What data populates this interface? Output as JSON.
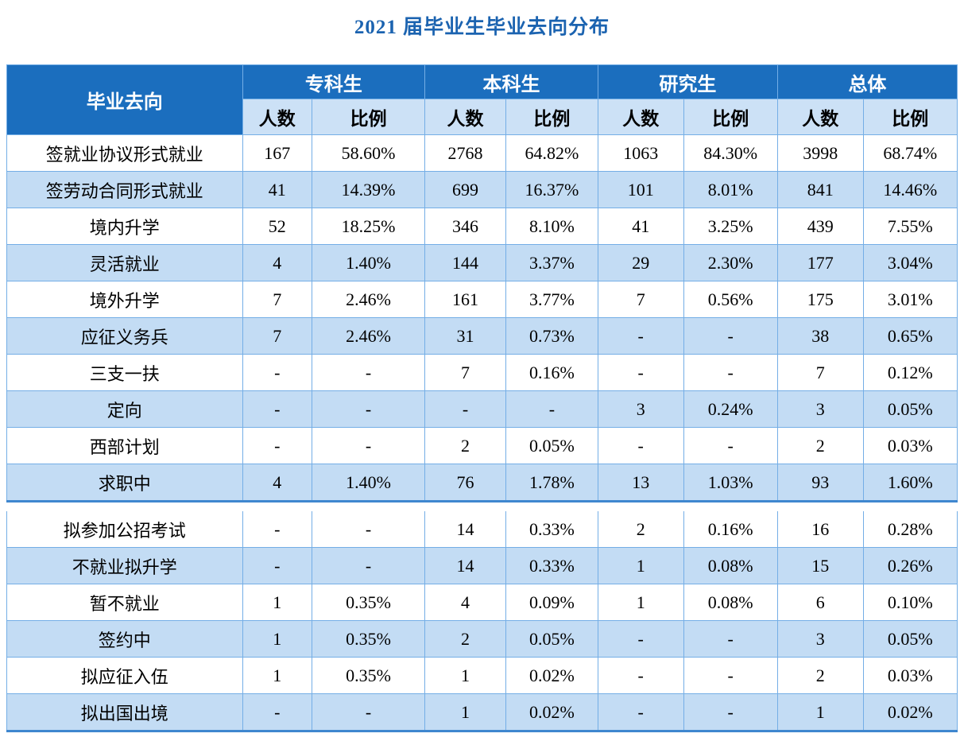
{
  "title": "2021 届毕业生毕业去向分布",
  "colors": {
    "title_text": "#1B63B0",
    "header_fill": "#1B6EBE",
    "header_text": "#FFFFFF",
    "subheader_fill": "#CCE1F6",
    "stripe_fill": "#C3DCF4",
    "cell_border": "#74AEE6",
    "section_rule": "#3F87CF",
    "body_text": "#000000"
  },
  "table": {
    "corner_header": "毕业去向",
    "groups": [
      {
        "label": "专科生"
      },
      {
        "label": "本科生"
      },
      {
        "label": "研究生"
      },
      {
        "label": "总体"
      }
    ],
    "subheaders": [
      "人数",
      "比例"
    ],
    "page_break_after_row": 10,
    "rows": [
      {
        "label": "签就业协议形式就业",
        "values": [
          "167",
          "58.60%",
          "2768",
          "64.82%",
          "1063",
          "84.30%",
          "3998",
          "68.74%"
        ]
      },
      {
        "label": "签劳动合同形式就业",
        "values": [
          "41",
          "14.39%",
          "699",
          "16.37%",
          "101",
          "8.01%",
          "841",
          "14.46%"
        ]
      },
      {
        "label": "境内升学",
        "values": [
          "52",
          "18.25%",
          "346",
          "8.10%",
          "41",
          "3.25%",
          "439",
          "7.55%"
        ]
      },
      {
        "label": "灵活就业",
        "values": [
          "4",
          "1.40%",
          "144",
          "3.37%",
          "29",
          "2.30%",
          "177",
          "3.04%"
        ]
      },
      {
        "label": "境外升学",
        "values": [
          "7",
          "2.46%",
          "161",
          "3.77%",
          "7",
          "0.56%",
          "175",
          "3.01%"
        ]
      },
      {
        "label": "应征义务兵",
        "values": [
          "7",
          "2.46%",
          "31",
          "0.73%",
          "-",
          "-",
          "38",
          "0.65%"
        ]
      },
      {
        "label": "三支一扶",
        "values": [
          "-",
          "-",
          "7",
          "0.16%",
          "-",
          "-",
          "7",
          "0.12%"
        ]
      },
      {
        "label": "定向",
        "values": [
          "-",
          "-",
          "-",
          "-",
          "3",
          "0.24%",
          "3",
          "0.05%"
        ]
      },
      {
        "label": "西部计划",
        "values": [
          "-",
          "-",
          "2",
          "0.05%",
          "-",
          "-",
          "2",
          "0.03%"
        ]
      },
      {
        "label": "求职中",
        "values": [
          "4",
          "1.40%",
          "76",
          "1.78%",
          "13",
          "1.03%",
          "93",
          "1.60%"
        ]
      },
      {
        "label": "拟参加公招考试",
        "values": [
          "-",
          "-",
          "14",
          "0.33%",
          "2",
          "0.16%",
          "16",
          "0.28%"
        ]
      },
      {
        "label": "不就业拟升学",
        "values": [
          "-",
          "-",
          "14",
          "0.33%",
          "1",
          "0.08%",
          "15",
          "0.26%"
        ]
      },
      {
        "label": "暂不就业",
        "values": [
          "1",
          "0.35%",
          "4",
          "0.09%",
          "1",
          "0.08%",
          "6",
          "0.10%"
        ]
      },
      {
        "label": "签约中",
        "values": [
          "1",
          "0.35%",
          "2",
          "0.05%",
          "-",
          "-",
          "3",
          "0.05%"
        ]
      },
      {
        "label": "拟应征入伍",
        "values": [
          "1",
          "0.35%",
          "1",
          "0.02%",
          "-",
          "-",
          "2",
          "0.03%"
        ]
      },
      {
        "label": "拟出国出境",
        "values": [
          "-",
          "-",
          "1",
          "0.02%",
          "-",
          "-",
          "1",
          "0.02%"
        ]
      }
    ]
  }
}
